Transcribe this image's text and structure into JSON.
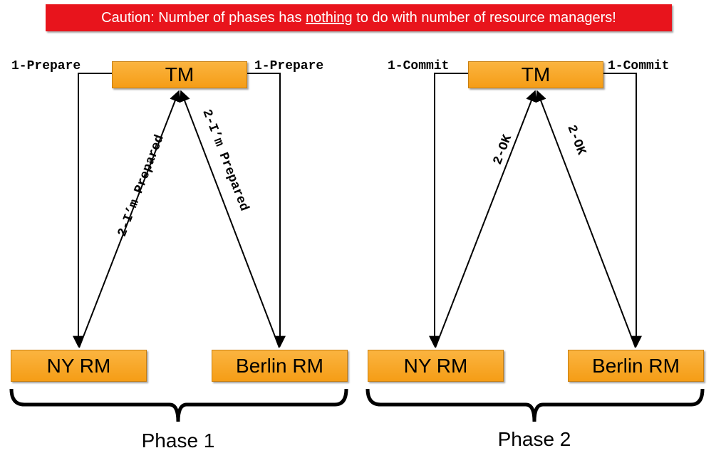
{
  "caution": {
    "prefix": "Caution: Number of phases has ",
    "emphasis": "nothing",
    "suffix": " to do with number of resource managers!"
  },
  "colors": {
    "banner": "#e8141c",
    "node_fill": "#f8a626",
    "line": "#000000"
  },
  "phase1": {
    "tm_label": "TM",
    "rm_left_label": "NY RM",
    "rm_right_label": "Berlin RM",
    "left_message": "1-Prepare",
    "right_message": "1-Prepare",
    "left_reply": "2-I’m Prepared",
    "right_reply": "2-I’m Prepared",
    "phase_label": "Phase 1"
  },
  "phase2": {
    "tm_label": "TM",
    "rm_left_label": "NY RM",
    "rm_right_label": "Berlin RM",
    "left_message": "1-Commit",
    "right_message": "1-Commit",
    "left_reply": "2-OK",
    "right_reply": "2-OK",
    "phase_label": "Phase 2"
  }
}
